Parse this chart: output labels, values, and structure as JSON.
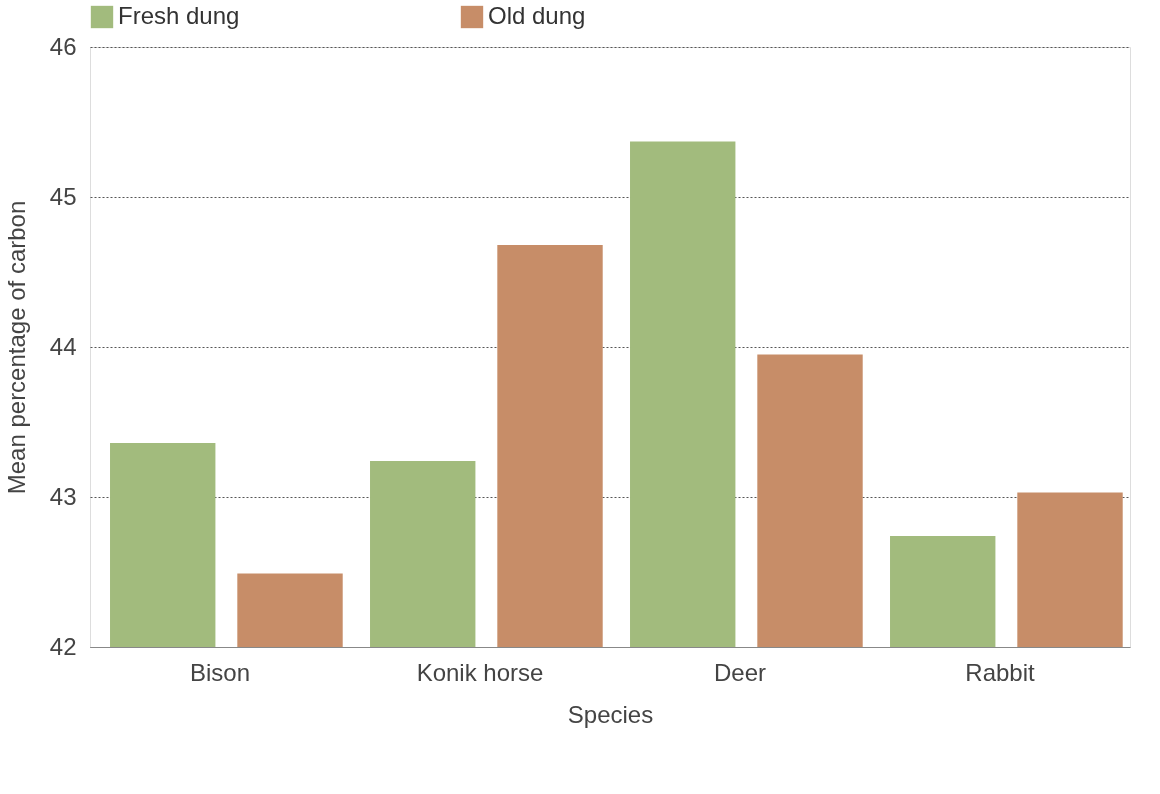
{
  "chart_data": {
    "type": "bar",
    "xlabel": "Species",
    "ylabel": "Mean percentage of carbon",
    "categories": [
      "Bison",
      "Konik horse",
      "Deer",
      "Rabbit"
    ],
    "series": [
      {
        "name": "Fresh dung",
        "color": "#a2bb7d",
        "values": [
          43.36,
          43.24,
          45.37,
          42.74
        ]
      },
      {
        "name": "Old dung",
        "color": "#c78d68",
        "values": [
          42.49,
          44.68,
          43.95,
          43.03
        ]
      }
    ],
    "ylim": [
      42,
      46
    ],
    "yticks": [
      42,
      43,
      44,
      45,
      46
    ],
    "grid": "y",
    "legend": "top"
  }
}
